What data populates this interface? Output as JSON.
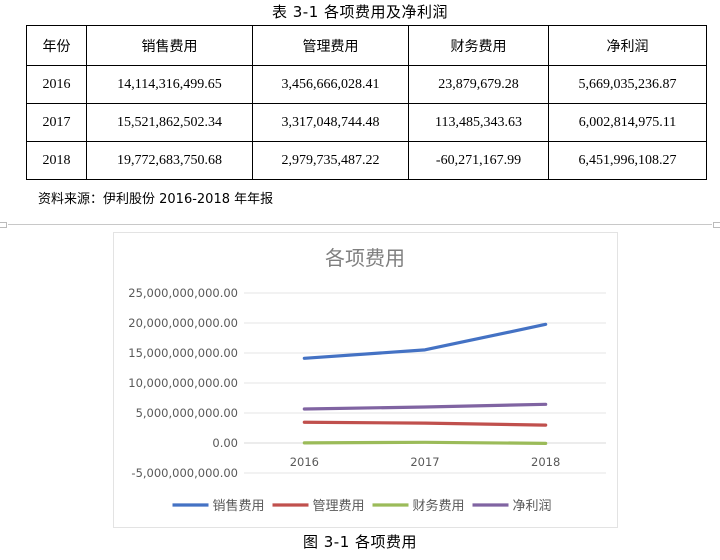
{
  "table": {
    "caption": "表 3-1   各项费用及净利润",
    "headers": [
      "年份",
      "销售费用",
      "管理费用",
      "财务费用",
      "净利润"
    ],
    "rows": [
      [
        "2016",
        "14,114,316,499.65",
        "3,456,666,028.41",
        "23,879,679.28",
        "5,669,035,236.87"
      ],
      [
        "2017",
        "15,521,862,502.34",
        "3,317,048,744.48",
        "113,485,343.63",
        "6,002,814,975.11"
      ],
      [
        "2018",
        "19,772,683,750.68",
        "2,979,735,487.22",
        "-60,271,167.99",
        "6,451,996,108.27"
      ]
    ],
    "source": "资料来源：伊利股份 2016-2018 年年报"
  },
  "figure": {
    "caption": "图 3-1    各项费用"
  },
  "chart_data": {
    "type": "line",
    "title": "各项费用",
    "categories": [
      "2016",
      "2017",
      "2018"
    ],
    "y_ticks": [
      -5000000000,
      0,
      5000000000,
      10000000000,
      15000000000,
      20000000000,
      25000000000
    ],
    "y_tick_labels": [
      "-5,000,000,000.00",
      "0.00",
      "5,000,000,000.00",
      "10,000,000,000.00",
      "15,000,000,000.00",
      "20,000,000,000.00",
      "25,000,000,000.00"
    ],
    "ylim": [
      -5000000000,
      25000000000
    ],
    "grid": true,
    "legend_position": "bottom",
    "series": [
      {
        "name": "销售费用",
        "color": "#4472C4",
        "values": [
          14114316499.65,
          15521862502.34,
          19772683750.68
        ]
      },
      {
        "name": "管理费用",
        "color": "#C0504D",
        "values": [
          3456666028.41,
          3317048744.48,
          2979735487.22
        ]
      },
      {
        "name": "财务费用",
        "color": "#9BBB59",
        "values": [
          23879679.28,
          113485343.63,
          -60271167.99
        ]
      },
      {
        "name": "净利润",
        "color": "#8064A2",
        "values": [
          5669035236.87,
          6002814975.11,
          6451996108.27
        ]
      }
    ]
  }
}
